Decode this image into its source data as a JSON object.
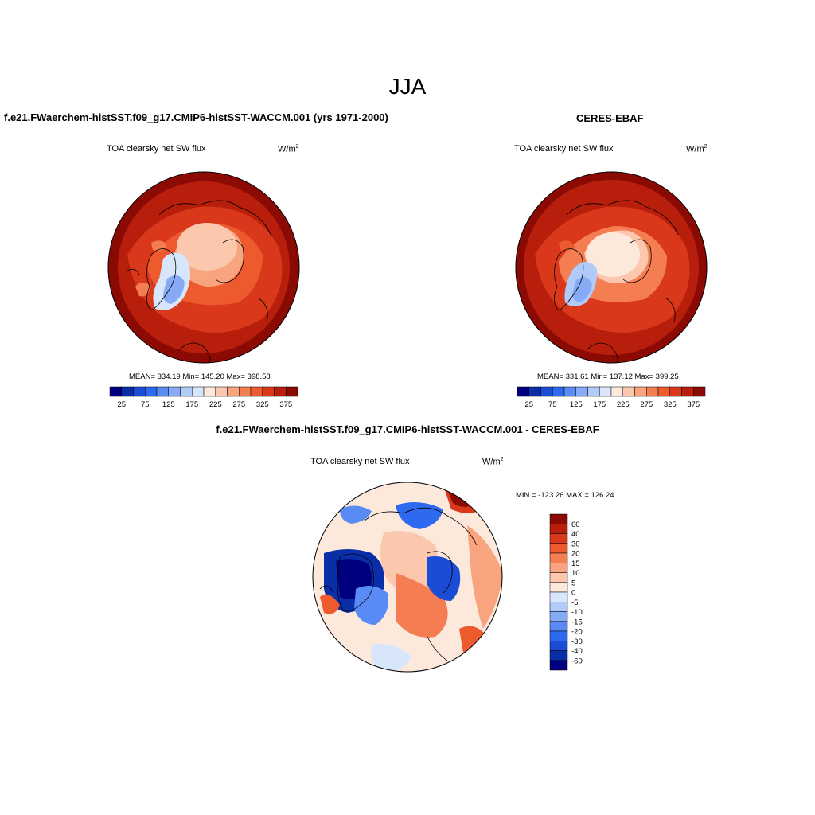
{
  "season": "JJA",
  "left_panel": {
    "case_title": "f.e21.FWaerchem-histSST.f09_g17.CMIP6-histSST-WACCM.001 (yrs 1971-2000)",
    "variable": "TOA clearsky net SW flux",
    "units_base": "W/m",
    "units_exp": "2",
    "stats": "MEAN= 334.19  Min= 145.20  Max= 398.58"
  },
  "right_panel": {
    "case_title": "CERES-EBAF",
    "variable": "TOA clearsky net SW flux",
    "units_base": "W/m",
    "units_exp": "2",
    "stats": "MEAN= 331.61  Min= 137.12  Max= 399.25"
  },
  "diff_panel": {
    "case_title": "f.e21.FWaerchem-histSST.f09_g17.CMIP6-histSST-WACCM.001 - CERES-EBAF",
    "variable": "TOA clearsky net SW flux",
    "units_base": "W/m",
    "units_exp": "2",
    "minmax": "MIN = -123.26 MAX = 126.24"
  },
  "abs_colorbar": {
    "colors": [
      "#00007f",
      "#0a2ea8",
      "#1a4cd6",
      "#2e6af0",
      "#5a8af4",
      "#86aaf6",
      "#b0cbf8",
      "#d8e6fb",
      "#fde9dc",
      "#fbc8ae",
      "#f8a47e",
      "#f47e52",
      "#ec5a2e",
      "#d9381a",
      "#b81e0c",
      "#8c0a04"
    ],
    "labels": [
      "25",
      "75",
      "125",
      "175",
      "225",
      "275",
      "325",
      "375"
    ]
  },
  "diff_colorbar": {
    "colors": [
      "#8c0a04",
      "#b81e0c",
      "#d9381a",
      "#ec5a2e",
      "#f47e52",
      "#f8a47e",
      "#fbc8ae",
      "#fde9dc",
      "#d8e6fb",
      "#b0cbf8",
      "#86aaf6",
      "#5a8af4",
      "#2e6af0",
      "#1a4cd6",
      "#0a2ea8",
      "#00007f"
    ],
    "labels": [
      "60",
      "40",
      "30",
      "20",
      "15",
      "10",
      "5",
      "0",
      "-5",
      "-10",
      "-15",
      "-20",
      "-30",
      "-40",
      "-60"
    ]
  }
}
